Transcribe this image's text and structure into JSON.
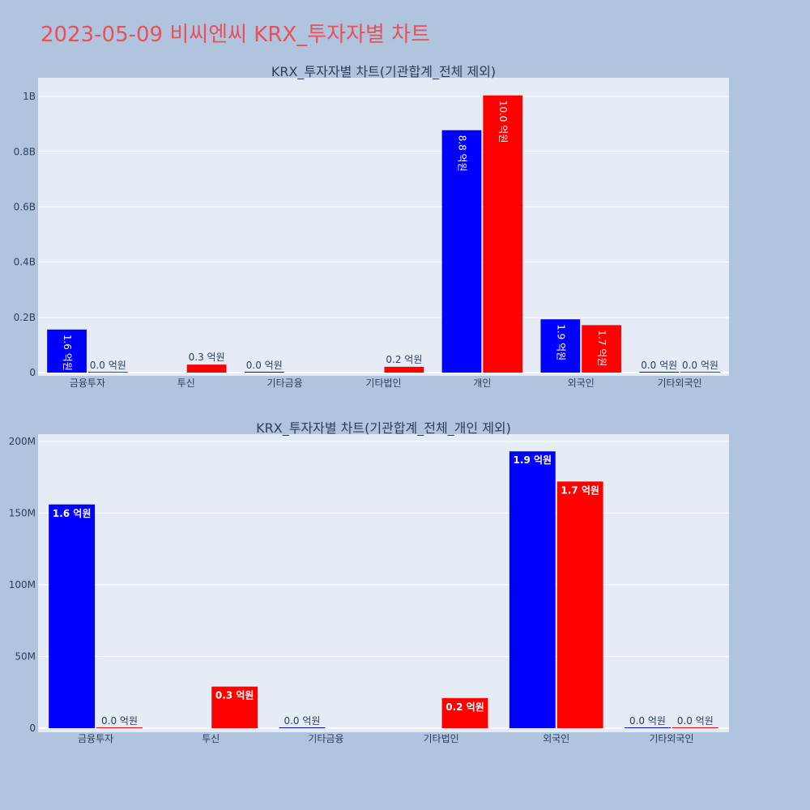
{
  "page_title": "2023-05-09 비씨엔씨 KRX_투자자별 차트",
  "colors": {
    "series_a": "#0000ff",
    "series_b": "#ff0000",
    "plot_bg": "#e5ecf6",
    "page_bg": "#b0c4de",
    "title": "#e8505b"
  },
  "chart_data": [
    {
      "type": "bar",
      "title": "KRX_투자자별 차트(기관합계_전체 제외)",
      "categories": [
        "금융투자",
        "투신",
        "기타금융",
        "기타법인",
        "개인",
        "외국인",
        "기타외국인"
      ],
      "series": [
        {
          "values": [
            156000000,
            null,
            0,
            null,
            878000000,
            193000000,
            0
          ],
          "labels": [
            "1.6 억원",
            "",
            "0.0 억원",
            "",
            "8.8 억원",
            "1.9 억원",
            "0.0 억원"
          ]
        },
        {
          "values": [
            0,
            29000000,
            null,
            21000000,
            1004000000,
            172000000,
            0
          ],
          "labels": [
            "0.0 억원",
            "0.3 억원",
            "",
            "0.2 억원",
            "10.0 억원",
            "1.7 억원",
            "0.0 억원"
          ]
        }
      ],
      "yticks": [
        0,
        200000000,
        400000000,
        600000000,
        800000000,
        1000000000
      ],
      "ytick_labels": [
        "0",
        "0.2B",
        "0.4B",
        "0.6B",
        "0.8B",
        "1B"
      ],
      "ylim": [
        0,
        1068000000
      ],
      "grid": true
    },
    {
      "type": "bar",
      "title": "KRX_투자자별 차트(기관합계_전체_개인 제외)",
      "categories": [
        "금융투자",
        "투신",
        "기타금융",
        "기타법인",
        "외국인",
        "기타외국인"
      ],
      "series": [
        {
          "values": [
            156000000,
            null,
            0,
            null,
            193000000,
            0
          ],
          "labels": [
            "1.6 억원",
            "",
            "0.0 억원",
            "",
            "1.9 억원",
            "0.0 억원"
          ]
        },
        {
          "values": [
            0,
            29000000,
            null,
            21000000,
            172000000,
            0
          ],
          "labels": [
            "0.0 억원",
            "0.3 억원",
            "",
            "0.2 억원",
            "1.7 억원",
            "0.0 억원"
          ]
        }
      ],
      "yticks": [
        0,
        50000000,
        100000000,
        150000000,
        200000000
      ],
      "ytick_labels": [
        "0",
        "50M",
        "100M",
        "150M",
        "200M"
      ],
      "ylim": [
        0,
        205000000
      ],
      "grid": true
    }
  ]
}
